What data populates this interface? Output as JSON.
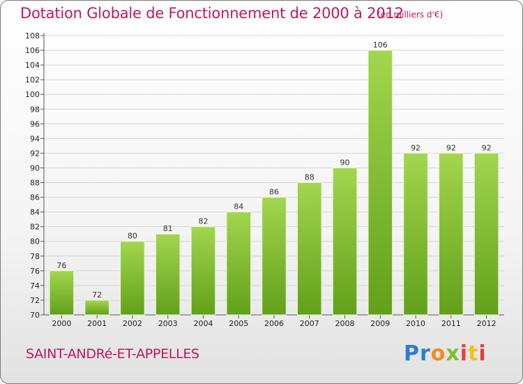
{
  "title": "Dotation Globale de Fonctionnement de 2000 à 2012",
  "unit": "(en milliers d'€)",
  "commune": "SAINT-ANDRé-ET-APPELLES",
  "brand": "Proxiti",
  "chart_data": {
    "type": "bar",
    "categories": [
      "2000",
      "2001",
      "2002",
      "2003",
      "2004",
      "2005",
      "2006",
      "2007",
      "2008",
      "2009",
      "2010",
      "2011",
      "2012"
    ],
    "values": [
      76,
      72,
      80,
      81,
      82,
      84,
      86,
      88,
      90,
      106,
      92,
      92,
      92
    ],
    "ylim": [
      70,
      108
    ],
    "ytick_step": 2,
    "grid": true,
    "bar_color_light": "#a2d64e",
    "bar_color_dark": "#62a01a"
  }
}
